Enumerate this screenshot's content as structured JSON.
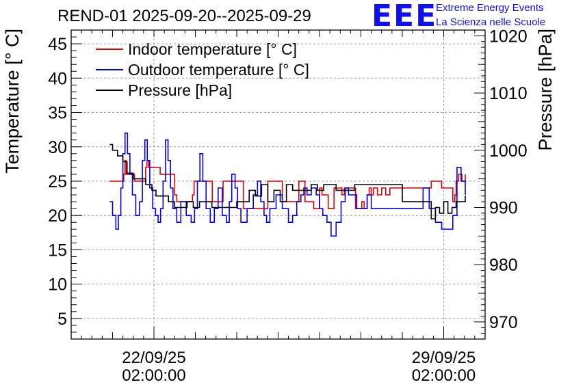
{
  "header": {
    "title": "REND-01 2025-09-20--2025-09-29",
    "logo_text": "EEE",
    "logo_line1": "Extreme Energy Events",
    "logo_line2": "La Scienza nelle Scuole"
  },
  "chart_data": {
    "type": "line",
    "title": "REND-01 2025-09-20--2025-09-29",
    "ylabel_left": "Temperature [° C]",
    "ylabel_right": "Pressure [hPa]",
    "ylim_left": [
      2,
      47
    ],
    "ylim_right": [
      967,
      1021
    ],
    "left_ticks": [
      5,
      10,
      15,
      20,
      25,
      30,
      35,
      40,
      45
    ],
    "right_ticks": [
      970,
      980,
      990,
      1000,
      1010,
      1020
    ],
    "x_range_days": [
      20.0,
      30.0
    ],
    "x_ticks": [
      {
        "day": 22.0,
        "line1": "22/09/25",
        "line2": "02:00:00"
      },
      {
        "day": 29.0,
        "line1": "29/09/25",
        "line2": "02:00:00"
      }
    ],
    "grid": true,
    "legend_position": "top-left",
    "colors": {
      "indoor": "#e00000",
      "outdoor": "#0000ee",
      "pressure": "#000000"
    },
    "series": [
      {
        "name": "Indoor temperature [° C]",
        "axis": "left",
        "color": "#e00000",
        "x": [
          20.93,
          21.22,
          21.27,
          21.3,
          21.33,
          21.48,
          21.53,
          21.72,
          21.8,
          21.83,
          21.87,
          21.99,
          22.15,
          22.23,
          22.4,
          22.5,
          22.55,
          22.87,
          22.93,
          22.97,
          23.35,
          23.41,
          23.65,
          23.67,
          24.09,
          24.16,
          24.7,
          24.75,
          25.05,
          25.1,
          25.46,
          25.5,
          25.6,
          25.65,
          25.8,
          25.86,
          25.97,
          26.0,
          26.06,
          26.15,
          26.21,
          26.24,
          26.35,
          26.45,
          26.54,
          26.6,
          26.79,
          26.87,
          27.02,
          27.08,
          27.15,
          27.2,
          27.25,
          27.3,
          27.4,
          27.5,
          27.6,
          27.7,
          27.8,
          27.85,
          28.2,
          28.7,
          28.95,
          29.08,
          29.22,
          29.27,
          29.3,
          29.36,
          29.44,
          29.52
        ],
        "y": [
          25,
          25,
          26,
          28,
          26,
          26,
          25,
          25,
          27,
          28,
          27,
          27,
          26,
          26,
          26,
          23,
          22,
          22,
          23,
          25,
          25,
          22,
          22,
          25,
          25,
          21,
          21,
          25,
          25,
          22,
          22,
          25,
          25,
          22,
          22,
          21,
          21,
          24,
          23,
          23,
          21,
          21,
          24,
          24,
          23,
          24,
          24,
          21,
          22,
          21,
          23,
          24,
          23,
          24,
          23,
          24,
          23,
          24,
          24,
          24,
          24,
          25,
          24,
          24,
          22,
          23,
          25,
          26,
          25,
          26
        ]
      },
      {
        "name": "Outdoor temperature [° C]",
        "axis": "left",
        "color": "#0000ee",
        "x": [
          20.93,
          21.0,
          21.08,
          21.14,
          21.2,
          21.25,
          21.3,
          21.36,
          21.42,
          21.48,
          21.56,
          21.65,
          21.72,
          21.78,
          21.84,
          21.9,
          21.97,
          22.04,
          22.1,
          22.16,
          22.22,
          22.28,
          22.34,
          22.4,
          22.46,
          22.55,
          22.65,
          22.78,
          22.9,
          22.98,
          23.05,
          23.11,
          23.18,
          23.26,
          23.36,
          23.46,
          23.55,
          23.65,
          23.75,
          23.82,
          23.88,
          23.96,
          24.02,
          24.1,
          24.25,
          24.4,
          24.5,
          24.58,
          24.66,
          24.72,
          24.8,
          24.95,
          25.1,
          25.25,
          25.35,
          25.45,
          25.55,
          25.62,
          25.7,
          25.8,
          25.92,
          26.0,
          26.08,
          26.18,
          26.28,
          26.4,
          26.52,
          26.62,
          26.7,
          26.8,
          26.9,
          27.0,
          27.15,
          27.25,
          27.35,
          27.5,
          28.5,
          28.65,
          28.8,
          28.95,
          29.1,
          29.22,
          29.32,
          29.42,
          29.52
        ],
        "y": [
          22,
          20,
          18,
          20,
          24,
          29,
          32,
          29,
          26,
          23,
          20,
          22,
          28,
          31,
          28,
          24,
          21,
          20,
          19,
          21,
          25,
          31,
          28,
          24,
          21,
          19,
          22,
          20,
          19,
          21,
          25,
          29,
          25,
          21,
          19,
          21,
          24,
          20,
          19,
          22,
          26,
          24,
          21,
          19,
          21,
          23,
          25,
          22,
          20,
          19,
          21,
          23,
          21,
          19,
          20,
          22,
          23,
          24,
          23,
          24,
          23,
          21,
          20,
          19,
          17,
          19,
          22,
          24,
          23,
          23,
          21,
          21,
          23,
          21,
          21,
          21,
          24,
          21,
          19,
          18,
          18,
          20,
          27,
          25,
          23
        ]
      },
      {
        "name": "Pressure [hPa]",
        "axis": "right",
        "color": "#000000",
        "x": [
          20.93,
          21.0,
          21.12,
          21.25,
          21.35,
          21.5,
          21.65,
          21.8,
          21.95,
          22.05,
          22.2,
          22.35,
          22.5,
          22.65,
          22.8,
          22.95,
          23.1,
          23.25,
          23.4,
          23.55,
          23.7,
          23.85,
          24.0,
          24.15,
          24.3,
          24.45,
          24.6,
          24.75,
          24.9,
          25.05,
          25.2,
          25.35,
          25.5,
          25.65,
          25.8,
          25.95,
          26.1,
          26.25,
          26.4,
          26.55,
          26.7,
          26.85,
          27.0,
          27.15,
          27.3,
          28.0,
          28.7,
          28.8,
          28.9,
          29.0,
          29.1,
          29.2,
          29.3,
          29.4,
          29.52
        ],
        "y": [
          1001,
          1000,
          999,
          998,
          996,
          995,
          995,
          994,
          993,
          992,
          992,
          991,
          990,
          990,
          991,
          990,
          991,
          991,
          990,
          990,
          990,
          990,
          991,
          991,
          993,
          992,
          994,
          991,
          993,
          991,
          994,
          993,
          993,
          993,
          994,
          993,
          994,
          994,
          993,
          993,
          993,
          994,
          994,
          994,
          994,
          991,
          988,
          990,
          989,
          991,
          989,
          990,
          991,
          991,
          992
        ]
      }
    ]
  }
}
